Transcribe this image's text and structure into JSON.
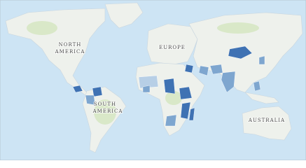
{
  "labels": [
    {
      "lines": [
        "NORTH",
        "AMERICA"
      ]
    },
    {
      "lines": [
        "EUROPE"
      ]
    },
    {
      "lines": [
        "SOUTH",
        "AMERICA"
      ]
    },
    {
      "lines": [
        "AUSTRALIA"
      ]
    }
  ]
}
